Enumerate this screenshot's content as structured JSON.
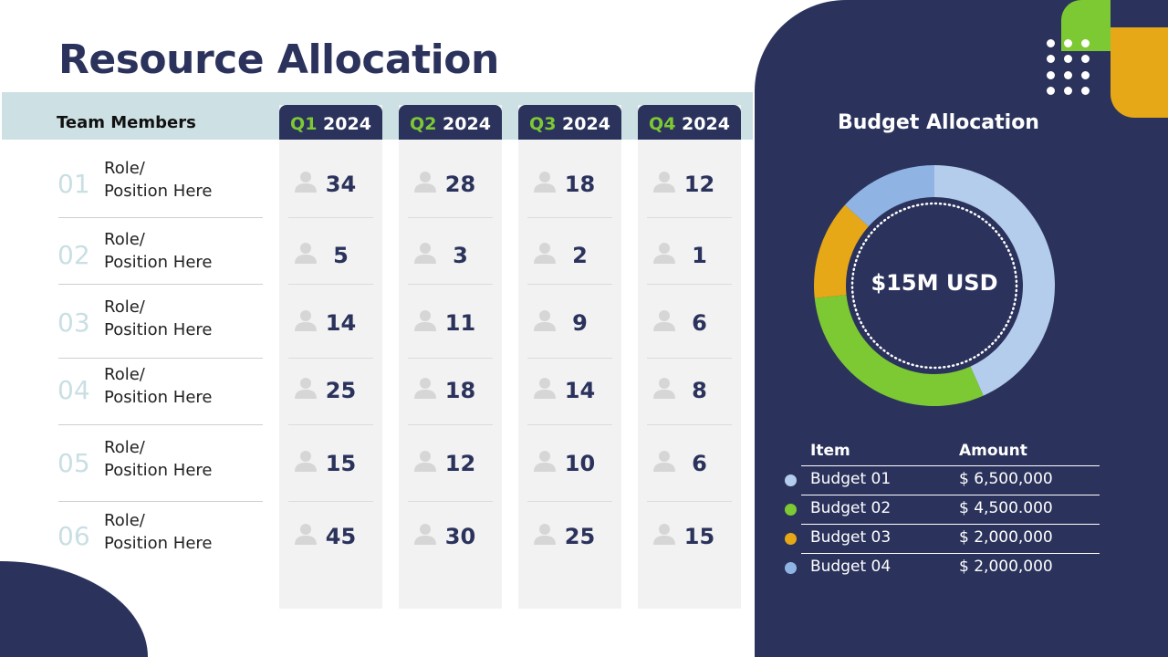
{
  "title": "Resource Allocation",
  "table": {
    "team_header": "Team Members",
    "quarters": [
      {
        "q": "Q1",
        "year": "2024"
      },
      {
        "q": "Q2",
        "year": "2024"
      },
      {
        "q": "Q3",
        "year": "2024"
      },
      {
        "q": "Q4",
        "year": "2024"
      }
    ],
    "rows": [
      {
        "num": "01",
        "role": "Role/",
        "position": "Position Here",
        "values": [
          "34",
          "28",
          "18",
          "12"
        ]
      },
      {
        "num": "02",
        "role": "Role/",
        "position": "Position Here",
        "values": [
          "5",
          "3",
          "2",
          "1"
        ]
      },
      {
        "num": "03",
        "role": "Role/",
        "position": "Position Here",
        "values": [
          "14",
          "11",
          "9",
          "6"
        ]
      },
      {
        "num": "04",
        "role": "Role/",
        "position": "Position Here",
        "values": [
          "25",
          "18",
          "14",
          "8"
        ]
      },
      {
        "num": "05",
        "role": "Role/",
        "position": "Position Here",
        "values": [
          "15",
          "12",
          "10",
          "6"
        ]
      },
      {
        "num": "06",
        "role": "Role/",
        "position": "Position Here",
        "values": [
          "45",
          "30",
          "25",
          "15"
        ]
      }
    ],
    "icon": "person-icon"
  },
  "budget": {
    "title": "Budget Allocation",
    "total": "$15M USD",
    "col_item": "Item",
    "col_amount": "Amount",
    "items": [
      {
        "name": "Budget 01",
        "amount": "$ 6,500,000",
        "value": 6500000,
        "color": "#b4cdec"
      },
      {
        "name": "Budget 02",
        "amount": "$ 4,500.000",
        "value": 4500000,
        "color": "#7dc934"
      },
      {
        "name": "Budget 03",
        "amount": "$ 2,000,000",
        "value": 2000000,
        "color": "#e6a817"
      },
      {
        "name": "Budget 04",
        "amount": "$ 2,000,000",
        "value": 2000000,
        "color": "#8fb4e3"
      }
    ]
  },
  "colors": {
    "navy": "#2b335c",
    "green": "#7dc934",
    "orange": "#e6a817",
    "band": "#cde0e4"
  }
}
